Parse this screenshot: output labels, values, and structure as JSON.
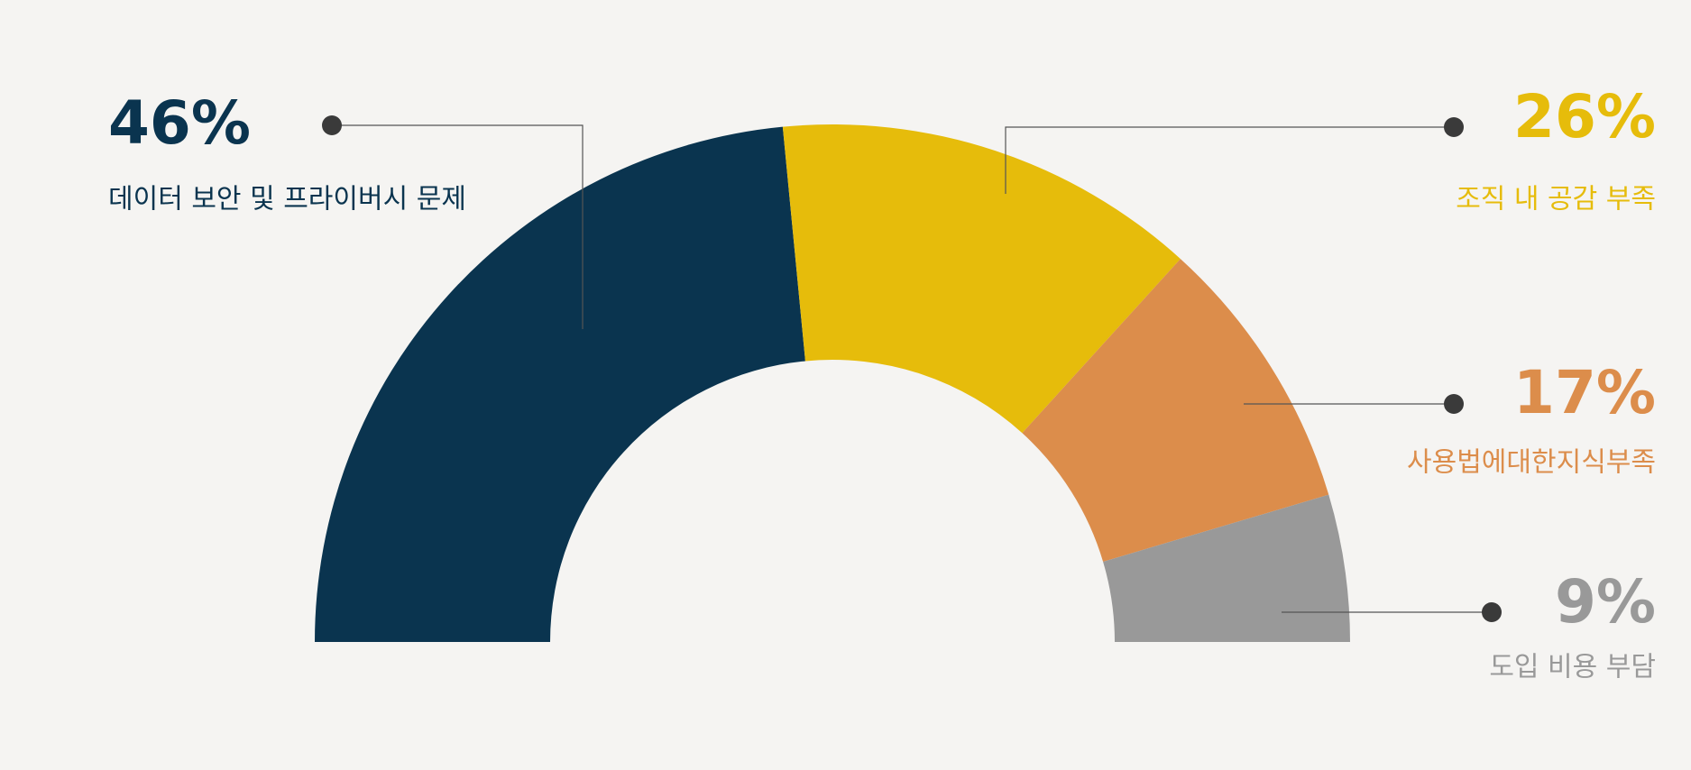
{
  "chart_data": {
    "type": "half-donut",
    "categories": [
      "데이터 보안 및 프라이버시 문제",
      "조직 내 공감 부족",
      "사용법에대한지식부족",
      "도입 비용 부담"
    ],
    "values": [
      46,
      26,
      17,
      9
    ],
    "value_labels": [
      "46%",
      "26%",
      "17%",
      "9%"
    ],
    "colors": [
      "#0a344f",
      "#e6bc0b",
      "#dc8d4b",
      "#999999"
    ]
  }
}
